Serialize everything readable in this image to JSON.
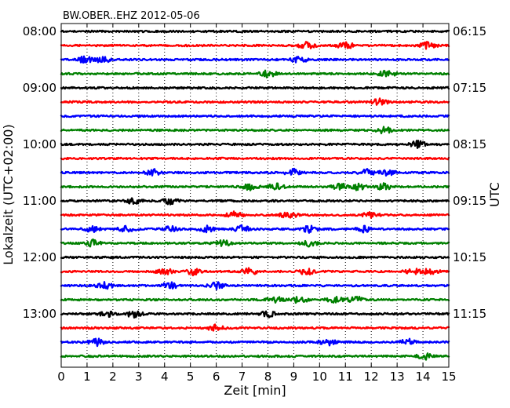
{
  "chart_data": {
    "type": "line",
    "title": "BW.OBER..EHZ 2012-05-06",
    "xlabel": "Zeit  [min]",
    "ylabel_left": "Lokalzeit (UTC+02:00)",
    "ylabel_right": "UTC",
    "xlim": [
      0,
      15
    ],
    "x_ticks": [
      "0",
      "1",
      "2",
      "3",
      "4",
      "5",
      "6",
      "7",
      "8",
      "9",
      "10",
      "11",
      "12",
      "13",
      "14",
      "15"
    ],
    "grid": "vertical dotted",
    "left_ticks": [
      "08:00",
      "09:00",
      "10:00",
      "11:00",
      "12:00",
      "13:00"
    ],
    "right_ticks": [
      "06:15",
      "07:15",
      "08:15",
      "09:15",
      "10:15",
      "11:15"
    ],
    "trace_interval_min": 15,
    "color_cycle": [
      "#000000",
      "#ff0000",
      "#0000ff",
      "#008000"
    ],
    "trace_start_times": [
      "08:00",
      "08:15",
      "08:30",
      "08:45",
      "09:00",
      "09:15",
      "09:30",
      "09:45",
      "10:00",
      "10:15",
      "10:30",
      "10:45",
      "11:00",
      "11:15",
      "11:30",
      "11:45",
      "12:00",
      "12:15",
      "12:30",
      "12:45",
      "13:00",
      "13:15",
      "13:30",
      "13:45"
    ],
    "series": [
      {
        "start": "08:00",
        "color": "#000000",
        "bursts": []
      },
      {
        "start": "08:15",
        "color": "#ff0000",
        "bursts": [
          9.5,
          11.0,
          14.2
        ]
      },
      {
        "start": "08:30",
        "color": "#0000ff",
        "bursts": [
          0.9,
          1.6,
          9.2
        ]
      },
      {
        "start": "08:45",
        "color": "#008000",
        "bursts": [
          8.0,
          12.6
        ]
      },
      {
        "start": "09:00",
        "color": "#000000",
        "bursts": []
      },
      {
        "start": "09:15",
        "color": "#ff0000",
        "bursts": [
          12.3
        ]
      },
      {
        "start": "09:30",
        "color": "#0000ff",
        "bursts": []
      },
      {
        "start": "09:45",
        "color": "#008000",
        "bursts": [
          12.5
        ]
      },
      {
        "start": "10:00",
        "color": "#000000",
        "bursts": [
          13.8
        ]
      },
      {
        "start": "10:15",
        "color": "#ff0000",
        "bursts": []
      },
      {
        "start": "10:30",
        "color": "#0000ff",
        "bursts": [
          3.6,
          9.0,
          11.8,
          12.6
        ]
      },
      {
        "start": "10:45",
        "color": "#008000",
        "bursts": [
          7.3,
          8.3,
          10.8,
          11.5,
          12.5
        ]
      },
      {
        "start": "11:00",
        "color": "#000000",
        "bursts": [
          2.8,
          4.2
        ]
      },
      {
        "start": "11:15",
        "color": "#ff0000",
        "bursts": [
          6.7,
          8.8,
          12.0
        ]
      },
      {
        "start": "11:30",
        "color": "#0000ff",
        "bursts": [
          1.2,
          2.5,
          4.2,
          5.6,
          7.0,
          9.6,
          11.7
        ]
      },
      {
        "start": "11:45",
        "color": "#008000",
        "bursts": [
          1.2,
          6.3,
          9.6
        ]
      },
      {
        "start": "12:00",
        "color": "#000000",
        "bursts": []
      },
      {
        "start": "12:15",
        "color": "#ff0000",
        "bursts": [
          4.0,
          5.1,
          7.3,
          9.5,
          13.6,
          14.3
        ]
      },
      {
        "start": "12:30",
        "color": "#0000ff",
        "bursts": [
          1.7,
          4.2,
          6.0
        ]
      },
      {
        "start": "12:45",
        "color": "#008000",
        "bursts": [
          8.3,
          9.2,
          10.6,
          11.4
        ]
      },
      {
        "start": "13:00",
        "color": "#000000",
        "bursts": [
          1.8,
          2.8,
          8.0
        ]
      },
      {
        "start": "13:15",
        "color": "#ff0000",
        "bursts": [
          6.0
        ]
      },
      {
        "start": "13:30",
        "color": "#0000ff",
        "bursts": [
          1.4,
          10.3,
          13.4
        ]
      },
      {
        "start": "13:45",
        "color": "#008000",
        "bursts": [
          14.1
        ]
      }
    ]
  }
}
